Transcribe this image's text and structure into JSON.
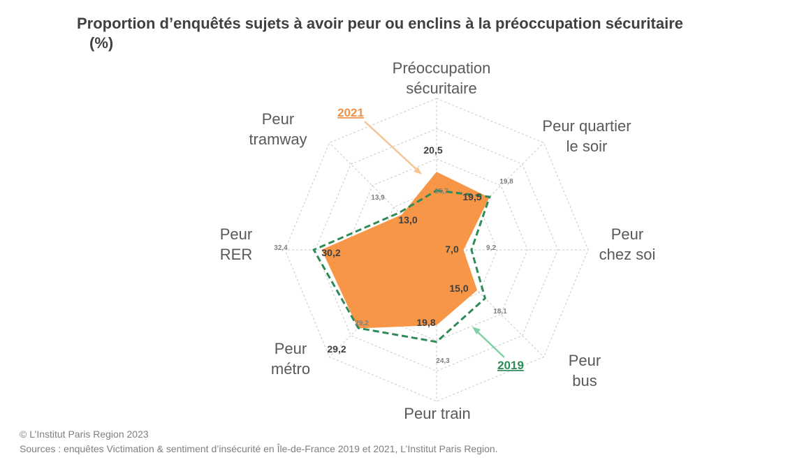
{
  "title_line1": "Proportion d’enquêtés sujets à avoir peur ou enclins à la préoccupation sécuritaire",
  "title_line2": "(%)",
  "chart_data": {
    "type": "radar",
    "title": "Proportion d’enquêtés sujets à avoir peur ou enclins à la préoccupation sécuritaire (%)",
    "axes": [
      {
        "label": [
          "Préoccupation",
          "sécuritaire"
        ]
      },
      {
        "label": [
          "Peur quartier",
          "le soir"
        ]
      },
      {
        "label": [
          "Peur",
          "chez soi"
        ]
      },
      {
        "label": [
          "Peur",
          "bus"
        ]
      },
      {
        "label": [
          "Peur train"
        ]
      },
      {
        "label": [
          "Peur",
          "métro"
        ]
      },
      {
        "label": [
          "Peur",
          "RER"
        ]
      },
      {
        "label": [
          "Peur",
          "tramway"
        ]
      }
    ],
    "r_max": 40,
    "grid_rings": 5,
    "series": [
      {
        "name": "2021",
        "color": "#f79646",
        "style": "filled",
        "values": [
          20.5,
          19.5,
          7.0,
          15.0,
          19.8,
          29.2,
          30.2,
          13.0
        ],
        "labels": [
          "20,5",
          "19,5",
          "7,0",
          "15,0",
          "19,8",
          "29,2",
          "30,2",
          "13,0"
        ]
      },
      {
        "name": "2019",
        "color": "#2e8b57",
        "style": "dashed",
        "values": [
          15.7,
          19.8,
          9.2,
          18.1,
          24.3,
          29.2,
          32.4,
          13.9
        ],
        "labels": [
          "15,7",
          "19,8",
          "9,2",
          "18,1",
          "24,3",
          "29,2",
          "32,4",
          "13,9"
        ]
      }
    ]
  },
  "footer": {
    "copyright": "© L’Institut Paris Region 2023",
    "sources": "Sources : enquêtes Victimation & sentiment d’insécurité en Île-de-France 2019 et 2021, L’Institut Paris Region."
  }
}
